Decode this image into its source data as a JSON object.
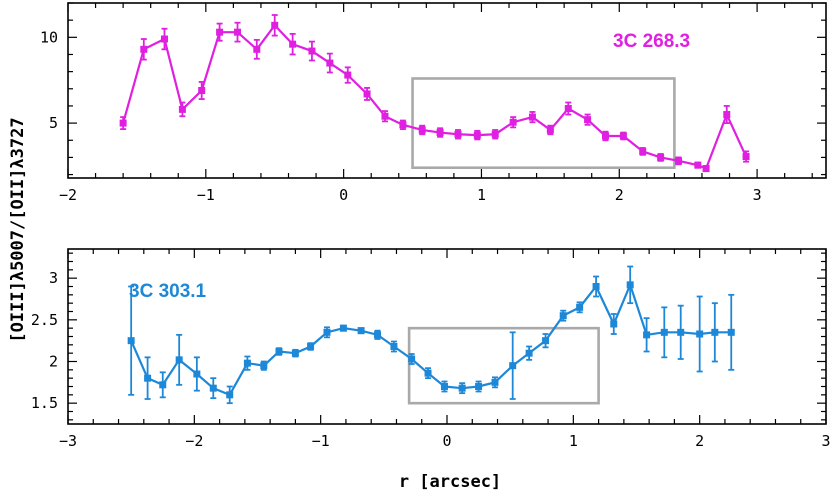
{
  "ylabel": "[OIII]λ5007/[OII]λ3727",
  "xlabel": "r [arcsec]",
  "chart_data": [
    {
      "type": "line",
      "annotation": "3C 268.3",
      "color": "#e020e0",
      "xlim": [
        -2,
        3.5
      ],
      "ylim": [
        1.8,
        12
      ],
      "xticks": [
        -2,
        -1,
        0,
        1,
        2,
        3
      ],
      "xtick_labels": [
        "−2",
        "−1",
        "0",
        "1",
        "2",
        "3"
      ],
      "yticks": [
        5,
        10
      ],
      "ytick_labels": [
        "5",
        "10"
      ],
      "box": {
        "x": [
          0.5,
          2.4
        ],
        "y": [
          2.4,
          7.6
        ]
      },
      "x": [
        -1.6,
        -1.45,
        -1.3,
        -1.17,
        -1.03,
        -0.9,
        -0.77,
        -0.63,
        -0.5,
        -0.37,
        -0.23,
        -0.1,
        0.03,
        0.17,
        0.3,
        0.43,
        0.57,
        0.7,
        0.83,
        0.97,
        1.1,
        1.23,
        1.37,
        1.5,
        1.63,
        1.77,
        1.9,
        2.03,
        2.17,
        2.3,
        2.43,
        2.57,
        2.63,
        2.78,
        2.92
      ],
      "y": [
        5.0,
        9.3,
        9.9,
        5.8,
        6.9,
        10.3,
        10.3,
        9.3,
        10.7,
        9.6,
        9.2,
        8.5,
        7.8,
        6.7,
        5.4,
        4.9,
        4.6,
        4.45,
        4.35,
        4.3,
        4.35,
        5.05,
        5.35,
        4.6,
        5.85,
        5.2,
        4.25,
        4.25,
        3.35,
        3.0,
        2.8,
        2.55,
        2.35,
        5.5,
        3.05
      ],
      "yerr": [
        0.35,
        0.6,
        0.6,
        0.4,
        0.5,
        0.5,
        0.55,
        0.55,
        0.6,
        0.6,
        0.55,
        0.55,
        0.45,
        0.35,
        0.3,
        0.25,
        0.25,
        0.25,
        0.25,
        0.25,
        0.25,
        0.3,
        0.3,
        0.25,
        0.35,
        0.3,
        0.25,
        0.2,
        0.2,
        0.2,
        0.2,
        0.15,
        0.15,
        0.5,
        0.3
      ]
    },
    {
      "type": "line",
      "annotation": "3C 303.1",
      "color": "#1e88d8",
      "xlim": [
        -3,
        3
      ],
      "ylim": [
        1.25,
        3.35
      ],
      "xticks": [
        -3,
        -2,
        -1,
        0,
        1,
        2,
        3
      ],
      "xtick_labels": [
        "−3",
        "−2",
        "−1",
        "0",
        "1",
        "2",
        "3"
      ],
      "yticks": [
        1.5,
        2,
        2.5,
        3
      ],
      "ytick_labels": [
        "1.5",
        "2",
        "2.5",
        "3"
      ],
      "box": {
        "x": [
          -0.3,
          1.2
        ],
        "y": [
          1.5,
          2.4
        ]
      },
      "x": [
        -2.5,
        -2.37,
        -2.25,
        -2.12,
        -1.98,
        -1.85,
        -1.72,
        -1.58,
        -1.45,
        -1.33,
        -1.2,
        -1.08,
        -0.95,
        -0.82,
        -0.68,
        -0.55,
        -0.42,
        -0.28,
        -0.15,
        -0.02,
        0.12,
        0.25,
        0.38,
        0.52,
        0.65,
        0.78,
        0.92,
        1.05,
        1.18,
        1.32,
        1.45,
        1.58,
        1.72,
        1.85,
        2.0,
        2.12,
        2.25
      ],
      "y": [
        2.25,
        1.8,
        1.72,
        2.02,
        1.85,
        1.68,
        1.6,
        1.98,
        1.95,
        2.12,
        2.1,
        2.18,
        2.35,
        2.4,
        2.37,
        2.32,
        2.18,
        2.03,
        1.86,
        1.7,
        1.68,
        1.7,
        1.75,
        1.95,
        2.1,
        2.25,
        2.55,
        2.65,
        2.9,
        2.45,
        2.92,
        2.32,
        2.35,
        2.35,
        2.33,
        2.35,
        2.35
      ],
      "yerr": [
        0.65,
        0.25,
        0.15,
        0.3,
        0.2,
        0.12,
        0.1,
        0.08,
        0.05,
        0.04,
        0.04,
        0.04,
        0.06,
        0.03,
        0.03,
        0.05,
        0.06,
        0.06,
        0.06,
        0.06,
        0.06,
        0.06,
        0.06,
        0.4,
        0.08,
        0.08,
        0.06,
        0.06,
        0.12,
        0.12,
        0.22,
        0.2,
        0.3,
        0.32,
        0.45,
        0.35,
        0.45
      ]
    }
  ]
}
